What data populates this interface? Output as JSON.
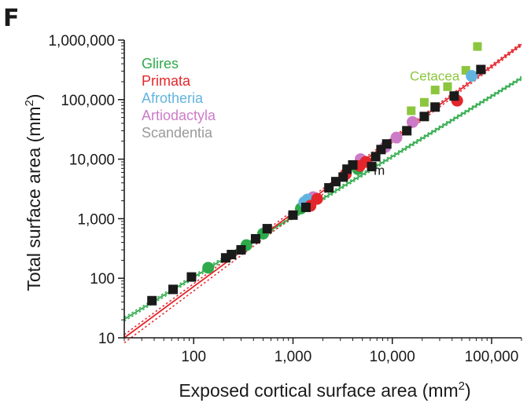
{
  "panel_label": "F",
  "colors": {
    "Glires": "#2eaa4a",
    "Primata": "#e3262b",
    "Afrotheria": "#62b4e0",
    "Artiodactyla": "#cc7bc8",
    "Scandentia": "#9a9a9a",
    "Cetacea": "#8cc63e",
    "other": "#1a1a1a",
    "axis": "#1a1a1a"
  },
  "chart_data": {
    "type": "scatter",
    "title": "",
    "xlabel": "Exposed cortical surface area (mm",
    "ylabel": "Total surface area (mm",
    "unit_superscript": "2",
    "x_scale": "log",
    "y_scale": "log",
    "xlim": [
      20,
      200000
    ],
    "ylim": [
      10,
      1000000
    ],
    "x_ticks": [
      100,
      1000,
      10000,
      100000
    ],
    "x_tick_labels": [
      "100",
      "1,000",
      "10,000",
      "100,000"
    ],
    "y_ticks": [
      10,
      100,
      1000,
      10000,
      100000,
      1000000
    ],
    "y_tick_labels": [
      "10",
      "100",
      "1,000",
      "10,000",
      "100,000",
      "1,000,000"
    ],
    "grid": false,
    "legend_position": "top-left",
    "legend": [
      "Glires",
      "Primata",
      "Afrotheria",
      "Artiodactyla",
      "Scandentia"
    ],
    "annotations": [
      {
        "text": "Cetacea",
        "x": 15000,
        "y": 210000,
        "color_key": "Cetacea"
      },
      {
        "text": "m",
        "x": 6500,
        "y": 5500,
        "color_key": "other"
      }
    ],
    "series": [
      {
        "name": "Cetacea",
        "marker": "square",
        "points": [
          [
            15500,
            65000
          ],
          [
            21000,
            90000
          ],
          [
            27000,
            145000
          ],
          [
            36000,
            165000
          ],
          [
            55000,
            310000
          ],
          [
            72000,
            780000
          ]
        ]
      },
      {
        "name": "Glires",
        "marker": "circle",
        "points": [
          [
            140,
            150
          ],
          [
            340,
            360
          ],
          [
            500,
            560
          ],
          [
            1200,
            1480
          ],
          [
            4500,
            6800
          ]
        ]
      },
      {
        "name": "Artiodactyla",
        "marker": "circle",
        "points": [
          [
            1600,
            2300
          ],
          [
            4800,
            10000
          ],
          [
            8500,
            16000
          ],
          [
            11000,
            23000
          ],
          [
            16000,
            42000
          ]
        ]
      },
      {
        "name": "Afrotheria",
        "marker": "circle",
        "points": [
          [
            1300,
            1900
          ],
          [
            1400,
            2100
          ],
          [
            63000,
            250000
          ]
        ]
      },
      {
        "name": "Primata",
        "marker": "circle",
        "points": [
          [
            1500,
            1650
          ],
          [
            1750,
            2150
          ],
          [
            3400,
            5600
          ],
          [
            4700,
            7700
          ],
          [
            5400,
            9000
          ],
          [
            45000,
            96000
          ]
        ]
      },
      {
        "name": "other",
        "marker": "square",
        "points": [
          [
            38,
            42
          ],
          [
            62,
            65
          ],
          [
            95,
            105
          ],
          [
            210,
            220
          ],
          [
            240,
            250
          ],
          [
            300,
            300
          ],
          [
            420,
            460
          ],
          [
            550,
            680
          ],
          [
            1000,
            1150
          ],
          [
            1350,
            1550
          ],
          [
            2300,
            3300
          ],
          [
            2700,
            4200
          ],
          [
            3200,
            5000
          ],
          [
            3500,
            6800
          ],
          [
            4000,
            8000
          ],
          [
            6200,
            7500
          ],
          [
            6800,
            11000
          ],
          [
            7700,
            14500
          ],
          [
            8800,
            18000
          ],
          [
            14000,
            30000
          ],
          [
            21000,
            52000
          ],
          [
            27000,
            75000
          ],
          [
            42000,
            115000
          ],
          [
            78000,
            320000
          ]
        ]
      }
    ],
    "fit_lines": [
      {
        "name": "Glires",
        "color_key": "Glires",
        "x_range": [
          20,
          200000
        ],
        "y_range": [
          20.5,
          230000
        ],
        "ci": true
      },
      {
        "name": "Primata",
        "color_key": "Primata",
        "x_range": [
          20,
          200000
        ],
        "y_range": [
          10,
          850000
        ],
        "ci": true
      }
    ]
  }
}
